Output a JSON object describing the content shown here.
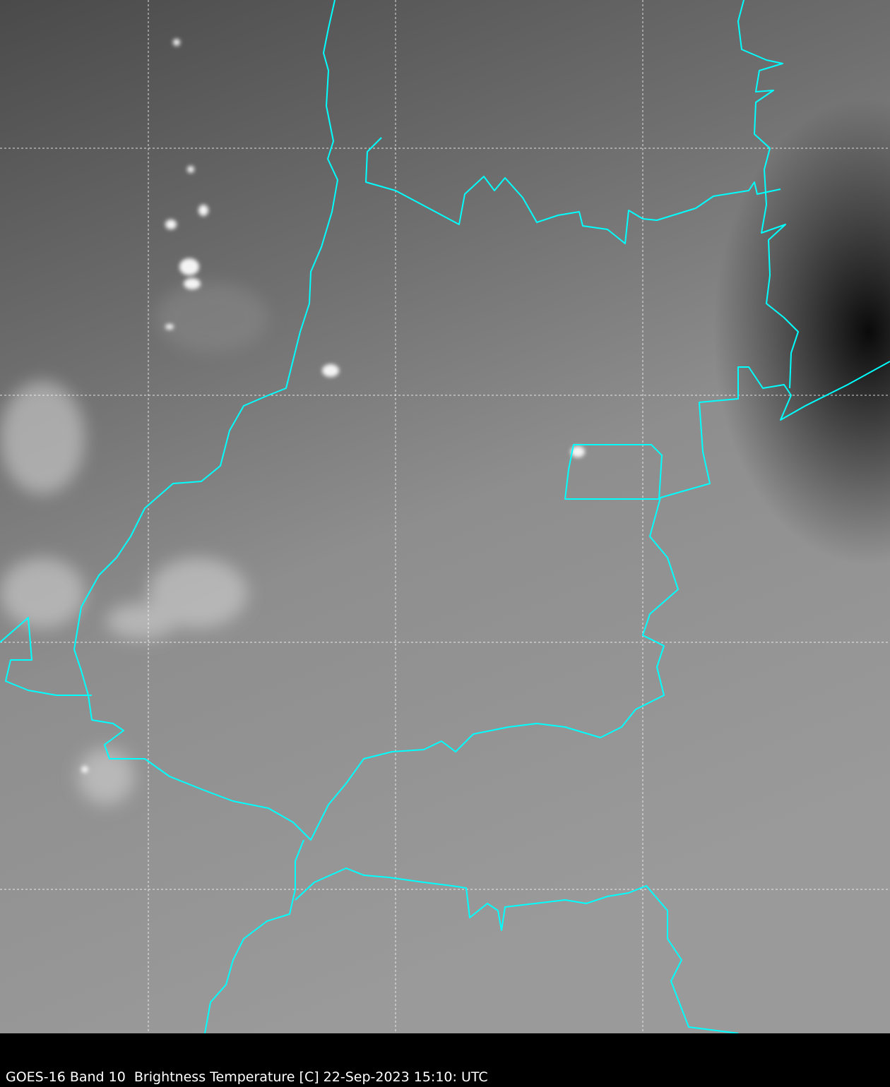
{
  "caption": "GOES-16 Band 10  Brightness Temperature [C] 22-Sep-2023 15:10: UTC",
  "colors": {
    "border": "#00ffff",
    "grid": "#ffffff",
    "background": "#000000"
  },
  "map": {
    "grid": true,
    "grid_style": "dashed",
    "colormap": "grayscale"
  }
}
